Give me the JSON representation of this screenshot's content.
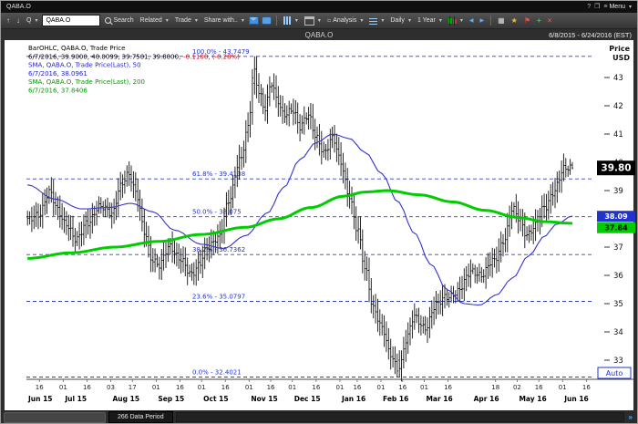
{
  "window": {
    "title": "QABA.O",
    "menu_label": "Menu"
  },
  "toolbar": {
    "symbol_button": "Q",
    "search_value": "QABA.O",
    "search_label": "Search",
    "related_label": "Related",
    "trade_label": "Trade",
    "share_label": "Share with..",
    "analysis_label": "Analysis",
    "interval_label": "Daily",
    "range_label": "1 Year"
  },
  "chart_header": {
    "title": "QABA.O",
    "date_range": "6/8/2015 - 6/24/2016 (EST)"
  },
  "legend": {
    "line1": "BarOHLC, QABA.O, Trade Price",
    "line2_black": "6/7/2016, 39.9000, 40.0099, 39.7501, 39.8000,",
    "line2_red": "-0.1100, (-0.28%)",
    "line3": "SMA, QABA.O, Trade Price(Last),  50",
    "line4": "6/7/2016, 38.0961",
    "line5": "SMA, QABA.O, Trade Price(Last),  200",
    "line6": "6/7/2016, 37.8406"
  },
  "price_axis": {
    "header_line1": "Price",
    "header_line2": "USD",
    "ticks": [
      43,
      42,
      41,
      40,
      39,
      38,
      37,
      36,
      35,
      34,
      33
    ],
    "auto_label": "Auto",
    "tags": [
      {
        "label": "39.80",
        "price": 39.8,
        "bg": "#000000",
        "fg": "#ffffff",
        "big": true
      },
      {
        "label": "38.09",
        "price": 38.09,
        "bg": "#2233cc",
        "fg": "#ffffff",
        "big": false
      },
      {
        "label": "37.84",
        "price": 37.84,
        "bg": "#00cc00",
        "fg": "#000000",
        "big": false
      }
    ]
  },
  "x_axis": {
    "day_ticks": [
      [
        "16",
        6
      ],
      [
        "01",
        17
      ],
      [
        "16",
        28
      ],
      [
        "03",
        39
      ],
      [
        "17",
        49
      ],
      [
        "01",
        60
      ],
      [
        "16",
        71
      ],
      [
        "01",
        81
      ],
      [
        "16",
        92
      ],
      [
        "01",
        103
      ],
      [
        "16",
        113
      ],
      [
        "01",
        123
      ],
      [
        "16",
        134
      ],
      [
        "01",
        145
      ],
      [
        "16",
        153
      ],
      [
        "01",
        164
      ],
      [
        "16",
        174
      ],
      [
        "01",
        184
      ],
      [
        "16",
        195
      ],
      [
        "18",
        217
      ],
      [
        "02",
        227
      ],
      [
        "16",
        237
      ],
      [
        "01",
        248
      ],
      [
        "16",
        259
      ]
    ],
    "month_ticks": [
      [
        "Jun 15",
        0
      ],
      [
        "Jul 15",
        17
      ],
      [
        "Aug 15",
        39
      ],
      [
        "Sep 15",
        60
      ],
      [
        "Oct 15",
        81
      ],
      [
        "Nov 15",
        103
      ],
      [
        "Dec 15",
        123
      ],
      [
        "Jan 16",
        145
      ],
      [
        "Feb 16",
        164
      ],
      [
        "Mar 16",
        184
      ],
      [
        "Apr 16",
        206
      ],
      [
        "May 16",
        227
      ],
      [
        "Jun 16",
        248
      ]
    ]
  },
  "statusbar": {
    "data_period_label": "266 Data Period"
  },
  "chart_data": {
    "type": "ohlc-bar",
    "symbol": "QABA.O",
    "bars_count": 253,
    "periods_visible": 266,
    "ylim": [
      32.3,
      44.2
    ],
    "last_bar": {
      "date": "6/7/2016",
      "open": 39.9,
      "high": 40.0099,
      "low": 39.7501,
      "close": 39.8,
      "change": -0.11,
      "change_pct": -0.28
    },
    "high_point": {
      "price": 43.7479,
      "t": 0.415
    },
    "low_point": {
      "price": 32.4021,
      "t": 0.682
    },
    "fib_retracement": [
      {
        "pct": "100.0%",
        "price": 43.7479,
        "label": "100.0% - 43.7479"
      },
      {
        "pct": "61.8%",
        "price": 39.4138,
        "label": "61.8% - 39.4138"
      },
      {
        "pct": "50.0%",
        "price": 38.075,
        "label": "50.0% - 38.075"
      },
      {
        "pct": "38.2%",
        "price": 36.7362,
        "label": "38.2% - 36.7362"
      },
      {
        "pct": "23.6%",
        "price": 35.0797,
        "label": "23.6% - 35.0797"
      },
      {
        "pct": "0.0%",
        "price": 32.4021,
        "label": "0.0% - 32.4021"
      }
    ],
    "close_path": [
      [
        0,
        37.9
      ],
      [
        0.02,
        38.2
      ],
      [
        0.04,
        38.9
      ],
      [
        0.055,
        38.3
      ],
      [
        0.07,
        37.9
      ],
      [
        0.09,
        37.2
      ],
      [
        0.11,
        37.9
      ],
      [
        0.13,
        38.4
      ],
      [
        0.155,
        38.2
      ],
      [
        0.17,
        39.2
      ],
      [
        0.185,
        39.5
      ],
      [
        0.2,
        38.9
      ],
      [
        0.215,
        37.6
      ],
      [
        0.228,
        36.5
      ],
      [
        0.24,
        36.3
      ],
      [
        0.26,
        37.1
      ],
      [
        0.28,
        36.5
      ],
      [
        0.3,
        36.1
      ],
      [
        0.315,
        36.4
      ],
      [
        0.33,
        36.9
      ],
      [
        0.35,
        37.4
      ],
      [
        0.37,
        38.6
      ],
      [
        0.39,
        40.1
      ],
      [
        0.405,
        41.3
      ],
      [
        0.415,
        43.2
      ],
      [
        0.425,
        42.4
      ],
      [
        0.435,
        41.9
      ],
      [
        0.448,
        42.9
      ],
      [
        0.458,
        42.2
      ],
      [
        0.47,
        41.6
      ],
      [
        0.488,
        41.9
      ],
      [
        0.5,
        41.3
      ],
      [
        0.515,
        41.6
      ],
      [
        0.53,
        40.9
      ],
      [
        0.545,
        40.4
      ],
      [
        0.56,
        40.8
      ],
      [
        0.575,
        40
      ],
      [
        0.59,
        38.9
      ],
      [
        0.605,
        37.6
      ],
      [
        0.62,
        36.2
      ],
      [
        0.635,
        34.9
      ],
      [
        0.651,
        34.1
      ],
      [
        0.665,
        33.2
      ],
      [
        0.682,
        32.7
      ],
      [
        0.695,
        33.7
      ],
      [
        0.71,
        34.5
      ],
      [
        0.73,
        34.2
      ],
      [
        0.75,
        34.9
      ],
      [
        0.77,
        35.3
      ],
      [
        0.79,
        35.4
      ],
      [
        0.817,
        36.2
      ],
      [
        0.835,
        36
      ],
      [
        0.855,
        36.5
      ],
      [
        0.875,
        37.3
      ],
      [
        0.89,
        38.3
      ],
      [
        0.901,
        38
      ],
      [
        0.917,
        37.5
      ],
      [
        0.93,
        37.7
      ],
      [
        0.95,
        38.4
      ],
      [
        0.965,
        39
      ],
      [
        0.984,
        39.7
      ],
      [
        1,
        39.8
      ]
    ],
    "sma50": {
      "period": 50,
      "last": 38.0961,
      "color": "#3333cc",
      "path": [
        [
          0,
          39.2
        ],
        [
          0.05,
          38.7
        ],
        [
          0.1,
          38.35
        ],
        [
          0.15,
          38.4
        ],
        [
          0.19,
          38.55
        ],
        [
          0.23,
          38.25
        ],
        [
          0.27,
          37.6
        ],
        [
          0.32,
          37.1
        ],
        [
          0.36,
          36.95
        ],
        [
          0.4,
          37.4
        ],
        [
          0.44,
          38.2
        ],
        [
          0.47,
          39.1
        ],
        [
          0.5,
          40.1
        ],
        [
          0.53,
          40.7
        ],
        [
          0.56,
          41
        ],
        [
          0.59,
          40.85
        ],
        [
          0.62,
          40.35
        ],
        [
          0.65,
          39.6
        ],
        [
          0.68,
          38.6
        ],
        [
          0.71,
          37.5
        ],
        [
          0.74,
          36.4
        ],
        [
          0.77,
          35.5
        ],
        [
          0.8,
          35
        ],
        [
          0.83,
          34.95
        ],
        [
          0.86,
          35.3
        ],
        [
          0.89,
          35.9
        ],
        [
          0.92,
          36.7
        ],
        [
          0.95,
          37.4
        ],
        [
          0.97,
          37.8
        ],
        [
          1,
          38.1
        ]
      ]
    },
    "sma200": {
      "period": 200,
      "last": 37.8406,
      "color": "#00cc00",
      "path": [
        [
          0,
          36.6
        ],
        [
          0.08,
          36.8
        ],
        [
          0.16,
          37
        ],
        [
          0.24,
          37.2
        ],
        [
          0.32,
          37.45
        ],
        [
          0.4,
          37.7
        ],
        [
          0.46,
          38
        ],
        [
          0.52,
          38.4
        ],
        [
          0.58,
          38.8
        ],
        [
          0.62,
          38.95
        ],
        [
          0.66,
          39
        ],
        [
          0.72,
          38.85
        ],
        [
          0.78,
          38.6
        ],
        [
          0.84,
          38.3
        ],
        [
          0.9,
          38.05
        ],
        [
          0.95,
          37.9
        ],
        [
          1,
          37.84
        ]
      ]
    }
  }
}
